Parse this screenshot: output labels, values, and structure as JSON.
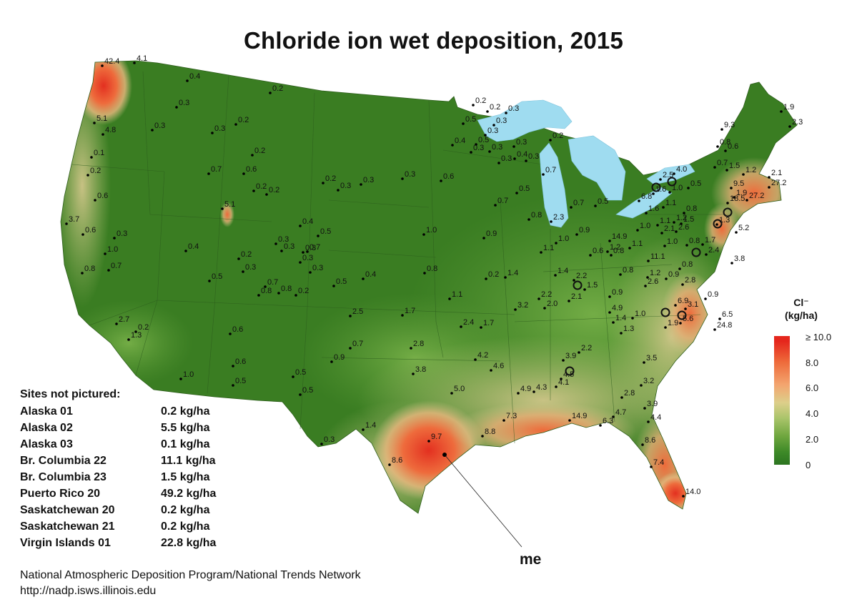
{
  "title": "Chloride ion wet deposition, 2015",
  "legend": {
    "title_line1": "Cl⁻",
    "title_line2": "(kg/ha)",
    "ticks": [
      "≥ 10.0",
      "8.0",
      "6.0",
      "4.0",
      "2.0",
      "0"
    ],
    "colors": [
      "#e5261c",
      "#ee6a3a",
      "#f3a56f",
      "#dccf8a",
      "#6ea63e",
      "#2c7420"
    ]
  },
  "not_pictured": {
    "heading": "Sites not pictured:",
    "rows": [
      {
        "name": "Alaska 01",
        "value": "0.2 kg/ha"
      },
      {
        "name": "Alaska 02",
        "value": "5.5 kg/ha"
      },
      {
        "name": "Alaska 03",
        "value": "0.1 kg/ha"
      },
      {
        "name": "Br. Columbia 22",
        "value": "11.1 kg/ha"
      },
      {
        "name": "Br. Columbia 23",
        "value": "1.5 kg/ha"
      },
      {
        "name": "Puerto Rico 20",
        "value": "49.2 kg/ha"
      },
      {
        "name": "Saskatchewan 20",
        "value": "0.2 kg/ha"
      },
      {
        "name": "Saskatchewan 21",
        "value": "0.2 kg/ha"
      },
      {
        "name": "Virgin Islands 01",
        "value": "22.8 kg/ha"
      }
    ]
  },
  "credit": {
    "line1": "National Atmospheric Deposition Program/National Trends Network",
    "line2": "http://nadp.isws.illinois.edu"
  },
  "annotation": {
    "label": "me"
  },
  "site_values": [
    "42.4",
    "4.1",
    "0.4",
    "0.2",
    "5.1",
    "4.8",
    "0.3",
    "0.3",
    "0.3",
    "0.2",
    "0.1",
    "0.2",
    "0.7",
    "0.6",
    "0.2",
    "0.6",
    "0.2",
    "0.2",
    "5.1",
    "3.7",
    "0.6",
    "0.3",
    "0.4",
    "0.4",
    "0.5",
    "0.3",
    "1.0",
    "0.3",
    "0.3",
    "0.7",
    "0.8",
    "0.7",
    "0.2",
    "0.3",
    "0.3",
    "0.5",
    "0.7",
    "0.8",
    "0.8",
    "0.2",
    "0.3",
    "0.5",
    "0.4",
    "0.2",
    "0.3",
    "0.3",
    "0.3",
    "0.6",
    "0.8",
    "1.0",
    "0.2",
    "0.2",
    "0.2",
    "0.3",
    "0.5",
    "0.3",
    "0.3",
    "0.4",
    "0.5",
    "0.3",
    "0.3",
    "0.3",
    "0.4",
    "0.3",
    "0.3",
    "0.2",
    "0.7",
    "0.5",
    "0.7",
    "0.8",
    "2.3",
    "0.7",
    "0.5",
    "0.9",
    "1.0",
    "0.9",
    "1.1",
    "1.4",
    "1.4",
    "2.2",
    "1.5",
    "2.1",
    "2.2",
    "2.0",
    "3.2",
    "1.1",
    "1.7",
    "2.5",
    "2.4",
    "1.7",
    "2.8",
    "0.9",
    "0.7",
    "4.2",
    "4.6",
    "3.8",
    "3.9",
    "2.2",
    "4.5",
    "4.1",
    "4.9",
    "4.3",
    "5.0",
    "7.3",
    "14.9",
    "8.8",
    "9.7",
    "8.6",
    "6.3",
    "4.7",
    "2.8",
    "3.5",
    "3.2",
    "3.9",
    "4.4",
    "8.6",
    "7.4",
    "14.0",
    "2.7",
    "0.2",
    "1.3",
    "0.6",
    "0.6",
    "0.5",
    "1.0",
    "0.5",
    "0.5",
    "0.3",
    "1.4",
    "0.9",
    "0.8",
    "0.8",
    "1.9",
    "2.3",
    "9.3",
    "0.8",
    "0.6",
    "0.7",
    "1.5",
    "1.2",
    "2.1",
    "27.2",
    "27.2",
    "18.5",
    "9.5",
    "1.9",
    "2.5",
    "4.0",
    "6.8",
    "1.6",
    "1.0",
    "0.5",
    "1.6",
    "1.1",
    "0.8",
    "1.1",
    "1.2",
    "1.5",
    "2.1",
    "2.6",
    "1.0",
    "1.3",
    "5.2",
    "14.9",
    "1.1",
    "1.2",
    "0.6",
    "1.0",
    "0.8",
    "1.7",
    "2.4",
    "3.8",
    "11.1",
    "0.9",
    "1.2",
    "0.8",
    "2.8",
    "2.6",
    "0.9",
    "6.9",
    "3.1",
    "4.9",
    "1.4",
    "1.0",
    "1.3",
    "1.9",
    "5.6",
    "6.5",
    "24.8",
    "16.4"
  ]
}
